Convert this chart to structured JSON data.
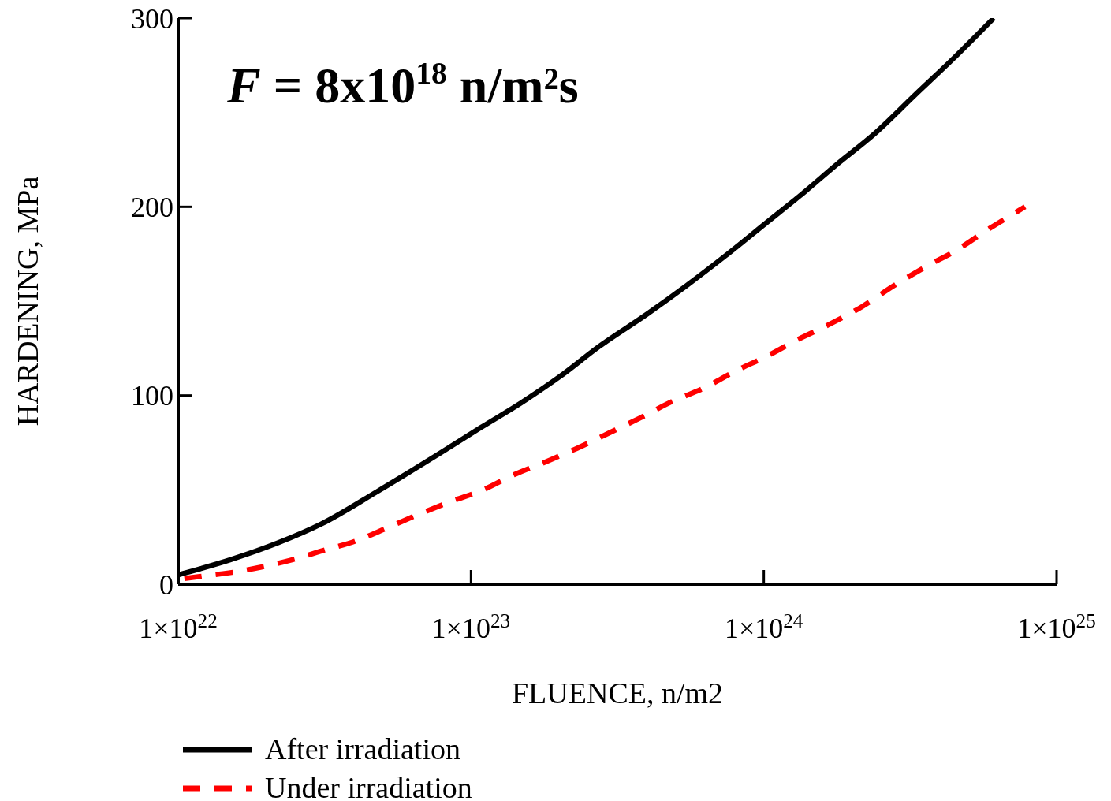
{
  "chart_data": {
    "type": "line",
    "xlabel": "FLUENCE, n/m2",
    "ylabel": "HARDENING, MPa",
    "annotations": [
      "F = 8x10$^{18}$ n/m²s"
    ],
    "log": "x",
    "xlim": [
      1e+22,
      1e+25
    ],
    "xticks": [
      {
        "value": 1e+22,
        "label": "1×10$^{22}$"
      },
      {
        "value": 1e+23,
        "label": "1×10$^{23}$"
      },
      {
        "value": 1e+24,
        "label": "1×10$^{24}$"
      },
      {
        "value": 1e+25,
        "label": "1×10$^{25}$"
      }
    ],
    "ylim": [
      0,
      300
    ],
    "yticks": [
      0,
      100,
      200,
      300
    ],
    "legend": "bottom left",
    "marker": "none",
    "series": [
      {
        "name": "After irradiation",
        "color": "#000000",
        "line_style": "solid",
        "x": [
          1e+22,
          1.51e+22,
          2.2e+22,
          3.09e+22,
          4.77e+22,
          7.94e+22,
          1.08e+23,
          1.48e+23,
          2.01e+23,
          2.74e+23,
          3.98e+23,
          5.42e+23,
          7.39e+23,
          1.01e+24,
          1.38e+24,
          1.76e+24,
          2.4e+24,
          3.27e+24,
          4.47e+24,
          6.1e+24
        ],
        "values": [
          5,
          13,
          22,
          32,
          49,
          70,
          83,
          96,
          110,
          126,
          143,
          158,
          174,
          191,
          208,
          222,
          239,
          259,
          279,
          300
        ]
      },
      {
        "name": "Under irradiation",
        "color": "#ff0000",
        "line_style": "dashed",
        "x": [
          1.05e+22,
          1.17e+22,
          1.49e+22,
          1.91e+22,
          2.46e+22,
          3.15e+22,
          4.06e+22,
          5.2e+22,
          6.62e+22,
          8.6e+22,
          1.1e+23,
          1.4e+23,
          1.81e+23,
          2.3e+23,
          2.95e+23,
          3.77e+23,
          4.89e+23,
          6.26e+23,
          8.01e+23,
          1.03e+24,
          1.32e+24,
          1.69e+24,
          2.16e+24,
          2.77e+24,
          3.55e+24,
          4.55e+24,
          5.83e+24,
          7.8e+24
        ],
        "values": [
          3,
          4,
          6,
          9,
          13,
          18,
          23,
          30,
          37,
          44,
          50,
          58,
          65,
          72,
          80,
          88,
          97,
          104,
          113,
          121,
          130,
          138,
          147,
          158,
          168,
          177,
          188,
          200
        ]
      }
    ]
  }
}
